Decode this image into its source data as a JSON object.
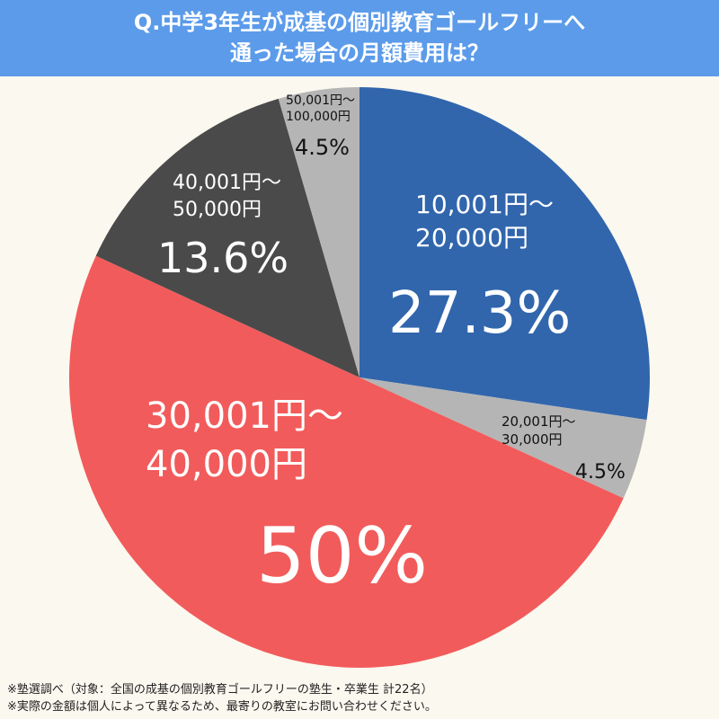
{
  "title": {
    "line1": "Q.中学3年生が成基の個別教育ゴールフリーへ",
    "line2": "通った場合の月額費用は？"
  },
  "colors": {
    "title_bg": "#5b9bea",
    "background": "#fbf8ef"
  },
  "chart_data": {
    "type": "pie",
    "start_angle_deg": 0,
    "direction": "clockwise",
    "slices": [
      {
        "label_lines": [
          "10,001円〜",
          "20,000円"
        ],
        "value": 27.3,
        "display": "27.3%",
        "color": "#3166ad",
        "label_color": "#ffffff"
      },
      {
        "label_lines": [
          "20,001円〜",
          "30,000円"
        ],
        "value": 4.5,
        "display": "4.5%",
        "color": "#b5b5b5",
        "label_color": "#111111"
      },
      {
        "label_lines": [
          "30,001円〜",
          "40,000円"
        ],
        "value": 50,
        "display": "50%",
        "color": "#f25b5b",
        "label_color": "#ffffff"
      },
      {
        "label_lines": [
          "40,001円〜",
          "50,000円"
        ],
        "value": 13.6,
        "display": "13.6%",
        "color": "#4a4a4a",
        "label_color": "#ffffff"
      },
      {
        "label_lines": [
          "50,001円〜",
          "100,000円"
        ],
        "value": 4.5,
        "display": "4.5%",
        "color": "#b5b5b5",
        "label_color": "#111111"
      }
    ]
  },
  "footnotes": [
    "※塾選調べ（対象：全国の成基の個別教育ゴールフリーの塾生・卒業生 計22名）",
    "※実際の金額は個人によって異なるため、最寄りの教室にお問い合わせください。"
  ]
}
